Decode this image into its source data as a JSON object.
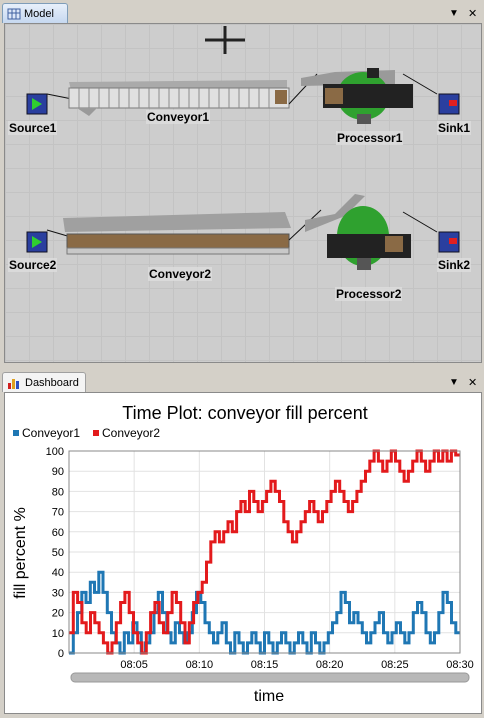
{
  "model_pane": {
    "tab_label": "Model",
    "menu_glyph": "▼",
    "close_glyph": "✕",
    "objects": {
      "source1": "Source1",
      "conveyor1": "Conveyor1",
      "processor1": "Processor1",
      "sink1": "Sink1",
      "source2": "Source2",
      "conveyor2": "Conveyor2",
      "processor2": "Processor2",
      "sink2": "Sink2"
    }
  },
  "dashboard_pane": {
    "tab_label": "Dashboard",
    "menu_glyph": "▼",
    "close_glyph": "✕"
  },
  "colors": {
    "conveyor1": "#1f77b4",
    "conveyor2": "#e31a1c",
    "processor_green": "#2fa12f",
    "source_blue": "#2a3f9f"
  },
  "chart_data": {
    "type": "line",
    "title": "Time Plot: conveyor fill percent",
    "xlabel": "time",
    "ylabel": "fill percent %",
    "ylim": [
      0,
      100
    ],
    "yticks": [
      "0",
      "10",
      "20",
      "30",
      "40",
      "50",
      "60",
      "70",
      "80",
      "90",
      "100"
    ],
    "xlim": [
      "08:00",
      "08:30"
    ],
    "xticks": [
      "08:05",
      "08:10",
      "08:15",
      "08:20",
      "08:25",
      "08:30"
    ],
    "grid": true,
    "legend_position": "top-left",
    "series": [
      {
        "name": "Conveyor1",
        "values": [
          0,
          10,
          20,
          30,
          25,
          35,
          30,
          40,
          30,
          20,
          10,
          5,
          0,
          10,
          5,
          15,
          10,
          0,
          5,
          10,
          20,
          30,
          20,
          10,
          5,
          15,
          10,
          5,
          10,
          20,
          30,
          25,
          15,
          10,
          5,
          10,
          15,
          5,
          0,
          10,
          5,
          0,
          5,
          10,
          5,
          0,
          10,
          5,
          0,
          5,
          10,
          5,
          0,
          5,
          10,
          5,
          0,
          10,
          5,
          0,
          5,
          10,
          15,
          20,
          30,
          25,
          15,
          20,
          15,
          10,
          5,
          10,
          15,
          20,
          10,
          5,
          10,
          15,
          10,
          5,
          10,
          20,
          25,
          20,
          10,
          5,
          10,
          20,
          30,
          25,
          15,
          10
        ]
      },
      {
        "name": "Conveyor2",
        "values": [
          10,
          30,
          25,
          15,
          10,
          20,
          15,
          10,
          5,
          0,
          5,
          15,
          25,
          30,
          20,
          10,
          5,
          0,
          10,
          20,
          25,
          15,
          10,
          20,
          30,
          25,
          15,
          5,
          15,
          25,
          30,
          35,
          45,
          55,
          60,
          55,
          60,
          65,
          60,
          70,
          75,
          70,
          80,
          75,
          70,
          75,
          80,
          85,
          80,
          75,
          65,
          60,
          55,
          60,
          65,
          70,
          75,
          70,
          65,
          70,
          75,
          80,
          85,
          80,
          75,
          70,
          75,
          80,
          85,
          90,
          95,
          100,
          95,
          90,
          95,
          100,
          95,
          90,
          85,
          90,
          95,
          100,
          95,
          90,
          95,
          100,
          95,
          100,
          95,
          100,
          98
        ]
      }
    ]
  }
}
